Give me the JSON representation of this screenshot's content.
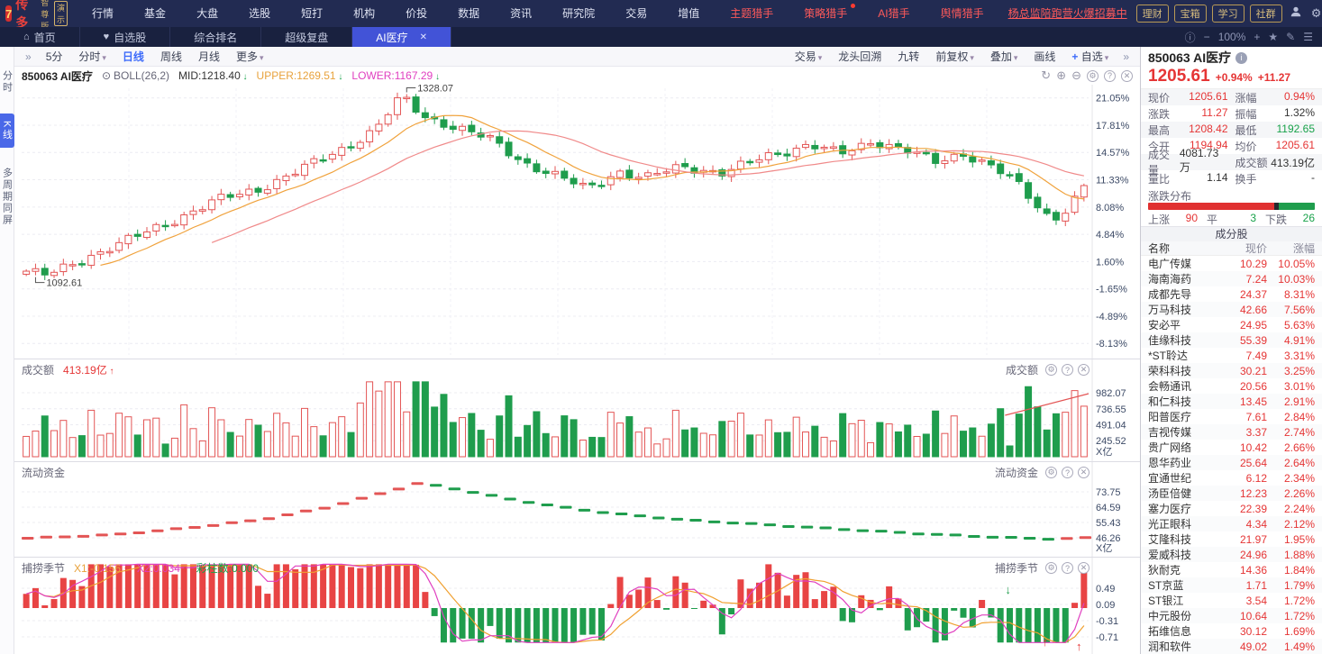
{
  "titlebar": {
    "logo": "经传多赢",
    "logo_badge": "智尊版",
    "logo_demo": "演示",
    "menus": [
      "行情",
      "基金",
      "大盘",
      "选股",
      "短打",
      "机构",
      "价投",
      "数据",
      "资讯",
      "研究院",
      "交易",
      "增值"
    ],
    "hot_menus": [
      {
        "label": "主题猎手",
        "dot": false
      },
      {
        "label": "策略猎手",
        "dot": true
      },
      {
        "label": "AI猎手",
        "dot": false
      },
      {
        "label": "舆情猎手",
        "dot": false
      }
    ],
    "promo": "杨总监陪跑营火爆招募中",
    "gold_buttons": [
      "理财",
      "宝箱",
      "学习",
      "社群"
    ]
  },
  "tabbar": {
    "tabs": [
      {
        "label": "首页",
        "icon": "home",
        "active": false
      },
      {
        "label": "自选股",
        "icon": "heart",
        "active": false
      },
      {
        "label": "综合排名",
        "active": false
      },
      {
        "label": "超级复盘",
        "active": false
      },
      {
        "label": "AI医疗",
        "active": true,
        "closable": true
      }
    ],
    "zoom_level": "100%"
  },
  "sidebar": {
    "items": [
      "分时",
      "K线",
      "多周期同屏"
    ],
    "active": "K线"
  },
  "toolbar": {
    "left": [
      {
        "label": "»"
      },
      {
        "label": "5分"
      },
      {
        "label": "分时",
        "caret": true
      },
      {
        "label": "日线",
        "active": true
      },
      {
        "label": "周线"
      },
      {
        "label": "月线"
      },
      {
        "label": "更多",
        "caret": true
      }
    ],
    "right": [
      {
        "label": "交易",
        "caret": true
      },
      {
        "label": "龙头回溯"
      },
      {
        "label": "九转"
      },
      {
        "label": "前复权",
        "caret": true
      },
      {
        "label": "叠加",
        "caret": true
      },
      {
        "label": "画线"
      },
      {
        "label": "自选",
        "plus": true,
        "caret": true
      },
      {
        "label": "»"
      }
    ]
  },
  "chart_header": {
    "code_name": "850063 AI医疗",
    "indicator": "BOLL(26,2)",
    "mid_label": "MID:1218.40",
    "upper_label": "UPPER:1269.51",
    "lower_label": "LOWER:1167.29"
  },
  "chart_data": [
    {
      "type": "candlestick",
      "title": "850063 AI医疗 日线",
      "yticks_pct": [
        "21.05%",
        "17.81%",
        "14.57%",
        "11.33%",
        "8.08%",
        "4.84%",
        "1.60%",
        "-1.65%",
        "-4.89%",
        "-8.13%"
      ],
      "baseline_price": 1093,
      "high_annotation": "1328.07",
      "low_annotation": "1092.61",
      "num_candles": 115,
      "close_anchors": [
        [
          0.0,
          1098
        ],
        [
          0.02,
          1092
        ],
        [
          0.06,
          1118
        ],
        [
          0.1,
          1140
        ],
        [
          0.14,
          1165
        ],
        [
          0.18,
          1190
        ],
        [
          0.22,
          1205
        ],
        [
          0.26,
          1230
        ],
        [
          0.3,
          1258
        ],
        [
          0.33,
          1282
        ],
        [
          0.355,
          1325
        ],
        [
          0.375,
          1300
        ],
        [
          0.4,
          1288
        ],
        [
          0.44,
          1268
        ],
        [
          0.47,
          1240
        ],
        [
          0.5,
          1222
        ],
        [
          0.53,
          1205
        ],
        [
          0.56,
          1228
        ],
        [
          0.585,
          1218
        ],
        [
          0.62,
          1235
        ],
        [
          0.66,
          1225
        ],
        [
          0.7,
          1248
        ],
        [
          0.74,
          1262
        ],
        [
          0.77,
          1250
        ],
        [
          0.8,
          1268
        ],
        [
          0.83,
          1255
        ],
        [
          0.86,
          1240
        ],
        [
          0.885,
          1252
        ],
        [
          0.91,
          1235
        ],
        [
          0.935,
          1215
        ],
        [
          0.955,
          1185
        ],
        [
          0.97,
          1165
        ],
        [
          0.985,
          1180
        ],
        [
          1.0,
          1206
        ]
      ],
      "boll": {
        "mid": 1218.4,
        "upper": 1269.51,
        "lower": 1167.29
      }
    },
    {
      "type": "bar",
      "name": "成交额",
      "current": "413.19亿",
      "yticks": [
        "982.07",
        "736.55",
        "491.04",
        "245.52"
      ],
      "unit": "X亿"
    },
    {
      "type": "line",
      "name": "流动资金",
      "yticks": [
        "73.75",
        "64.59",
        "55.43",
        "46.26"
      ],
      "unit": "X亿",
      "anchors": [
        [
          0.0,
          46.0
        ],
        [
          0.08,
          48.0
        ],
        [
          0.15,
          52.0
        ],
        [
          0.22,
          57.0
        ],
        [
          0.28,
          64.0
        ],
        [
          0.33,
          72.0
        ],
        [
          0.37,
          79.0
        ],
        [
          0.41,
          75.0
        ],
        [
          0.45,
          70.0
        ],
        [
          0.5,
          65.0
        ],
        [
          0.55,
          61.0
        ],
        [
          0.62,
          57.0
        ],
        [
          0.7,
          54.0
        ],
        [
          0.78,
          51.0
        ],
        [
          0.85,
          48.5
        ],
        [
          0.92,
          46.5
        ],
        [
          0.97,
          45.5
        ],
        [
          1.0,
          46.2
        ]
      ]
    },
    {
      "type": "histogram",
      "name": "捕捞季节",
      "x1_label": "X1:-0.156",
      "x2_label": "X2:0.034",
      "color_label": "彩柱数:0.000",
      "yticks": [
        "0.49",
        "0.09",
        "-0.31",
        "-0.71"
      ]
    }
  ],
  "colors": {
    "up_red": "#e35555",
    "down_green": "#1f9d4d",
    "ma_orange": "#f0a23c",
    "ma_pink": "#f08a8a",
    "x1_orange": "#f0a030",
    "x2_magenta": "#e040c0",
    "accent_blue": "#3d6bfa",
    "value_red": "#e53535",
    "value_green": "#18a24a"
  },
  "quote_panel": {
    "code_name": "850063 AI医疗",
    "last": "1205.61",
    "pct": "+0.94%",
    "chg": "+11.27",
    "stats": [
      {
        "l1": "现价",
        "v1": "1205.61",
        "c1": "red",
        "l2": "涨幅",
        "v2": "0.94%",
        "c2": "red"
      },
      {
        "l1": "涨跌",
        "v1": "11.27",
        "c1": "red",
        "l2": "振幅",
        "v2": "1.32%",
        "c2": "dark"
      },
      {
        "l1": "最高",
        "v1": "1208.42",
        "c1": "red",
        "l2": "最低",
        "v2": "1192.65",
        "c2": "green"
      },
      {
        "l1": "今开",
        "v1": "1194.94",
        "c1": "red",
        "l2": "均价",
        "v2": "1205.61",
        "c2": "red"
      },
      {
        "l1": "成交量",
        "v1": "4081.73万",
        "c1": "dark",
        "l2": "成交额",
        "v2": "413.19亿",
        "c2": "dark"
      },
      {
        "l1": "量比",
        "v1": "1.14",
        "c1": "dark",
        "l2": "换手",
        "v2": "-",
        "c2": "dark"
      }
    ],
    "distribution": {
      "label": "涨跌分布",
      "up_label": "上涨",
      "up": "90",
      "flat_label": "平",
      "flat": "3",
      "down_label": "下跌",
      "down": "26"
    },
    "components_title": "成分股",
    "columns": [
      "名称",
      "现价",
      "涨幅"
    ],
    "stocks": [
      {
        "name": "电广传媒",
        "price": "10.29",
        "pct": "10.05%"
      },
      {
        "name": "海南海药",
        "price": "7.24",
        "pct": "10.03%"
      },
      {
        "name": "成都先导",
        "price": "24.37",
        "pct": "8.31%"
      },
      {
        "name": "万马科技",
        "price": "42.66",
        "pct": "7.56%"
      },
      {
        "name": "安必平",
        "price": "24.95",
        "pct": "5.63%"
      },
      {
        "name": "佳缘科技",
        "price": "55.39",
        "pct": "4.91%"
      },
      {
        "name": "*ST聆达",
        "price": "7.49",
        "pct": "3.31%"
      },
      {
        "name": "荣科科技",
        "price": "30.21",
        "pct": "3.25%"
      },
      {
        "name": "会畅通讯",
        "price": "20.56",
        "pct": "3.01%"
      },
      {
        "name": "和仁科技",
        "price": "13.45",
        "pct": "2.91%"
      },
      {
        "name": "阳普医疗",
        "price": "7.61",
        "pct": "2.84%"
      },
      {
        "name": "吉视传媒",
        "price": "3.37",
        "pct": "2.74%"
      },
      {
        "name": "贵广网络",
        "price": "10.42",
        "pct": "2.66%"
      },
      {
        "name": "恩华药业",
        "price": "25.64",
        "pct": "2.64%"
      },
      {
        "name": "宜通世纪",
        "price": "6.12",
        "pct": "2.34%"
      },
      {
        "name": "汤臣倍健",
        "price": "12.23",
        "pct": "2.26%"
      },
      {
        "name": "塞力医疗",
        "price": "22.39",
        "pct": "2.24%"
      },
      {
        "name": "光正眼科",
        "price": "4.34",
        "pct": "2.12%"
      },
      {
        "name": "艾隆科技",
        "price": "21.97",
        "pct": "1.95%"
      },
      {
        "name": "爱威科技",
        "price": "24.96",
        "pct": "1.88%"
      },
      {
        "name": "狄耐克",
        "price": "14.36",
        "pct": "1.84%"
      },
      {
        "name": "ST京蓝",
        "price": "1.71",
        "pct": "1.79%"
      },
      {
        "name": "ST银江",
        "price": "3.54",
        "pct": "1.72%"
      },
      {
        "name": "中元股份",
        "price": "10.64",
        "pct": "1.72%"
      },
      {
        "name": "拓维信息",
        "price": "30.12",
        "pct": "1.69%"
      },
      {
        "name": "润和软件",
        "price": "49.02",
        "pct": "1.49%"
      }
    ]
  }
}
